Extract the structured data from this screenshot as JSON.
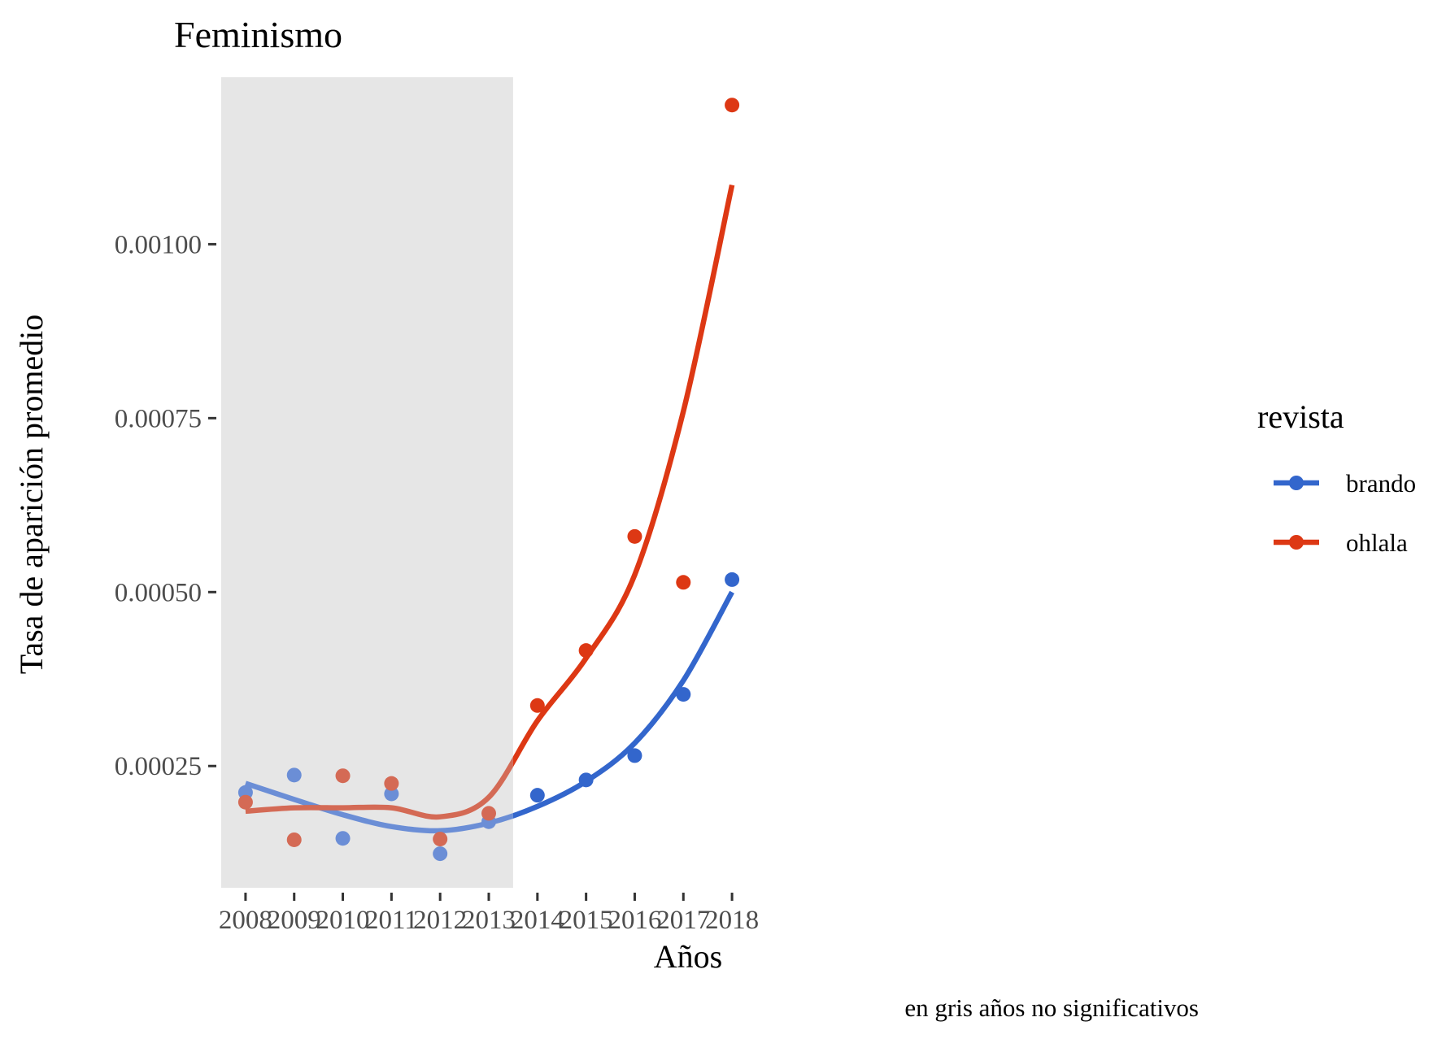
{
  "chart_data": {
    "type": "scatter",
    "title": "Feminismo",
    "xlabel": "Años",
    "ylabel": "Tasa de aparición promedio",
    "caption": "en gris años no significativos",
    "x_ticks": [
      "2008",
      "2009",
      "2010",
      "2011",
      "2012",
      "2013",
      "2014",
      "2015",
      "2016",
      "2017",
      "2018"
    ],
    "y_ticks": [
      "0.00025",
      "0.00050",
      "0.00075",
      "0.00100"
    ],
    "y_tick_values": [
      0.00025,
      0.0005,
      0.00075,
      0.001
    ],
    "xlim": [
      2007.5,
      2018.5
    ],
    "ylim": [
      7.5e-05,
      0.00124
    ],
    "grid": false,
    "shaded_region": {
      "x_start": 2007.5,
      "x_end": 2013.5,
      "color": "#e6e6e6",
      "meaning": "años no significativos"
    },
    "legend": {
      "title": "revista",
      "position": "right"
    },
    "series": [
      {
        "name": "brando",
        "color": "#3366cc",
        "muted_color": "#6b8ed6",
        "x": [
          2008,
          2009,
          2010,
          2011,
          2012,
          2013,
          2014,
          2015,
          2016,
          2017,
          2018
        ],
        "values": [
          0.000212,
          0.000237,
          0.000146,
          0.00021,
          0.000124,
          0.00017,
          0.000208,
          0.00023,
          0.000265,
          0.000353,
          0.000518
        ],
        "smooth": [
          0.000225,
          0.000202,
          0.00018,
          0.000163,
          0.000157,
          0.000168,
          0.000192,
          0.000228,
          0.000283,
          0.000373,
          0.0005
        ]
      },
      {
        "name": "ohlala",
        "color": "#dd3814",
        "muted_color": "#d46a55",
        "x": [
          2008,
          2009,
          2010,
          2011,
          2012,
          2013,
          2014,
          2015,
          2016,
          2017,
          2018
        ],
        "values": [
          0.000198,
          0.000144,
          0.000236,
          0.000225,
          0.000145,
          0.000182,
          0.000337,
          0.000416,
          0.00058,
          0.000514,
          0.0012
        ],
        "smooth": [
          0.000185,
          0.00019,
          0.00019,
          0.00019,
          0.000177,
          0.000205,
          0.000315,
          0.000405,
          0.000525,
          0.00076,
          0.001085
        ]
      }
    ]
  }
}
